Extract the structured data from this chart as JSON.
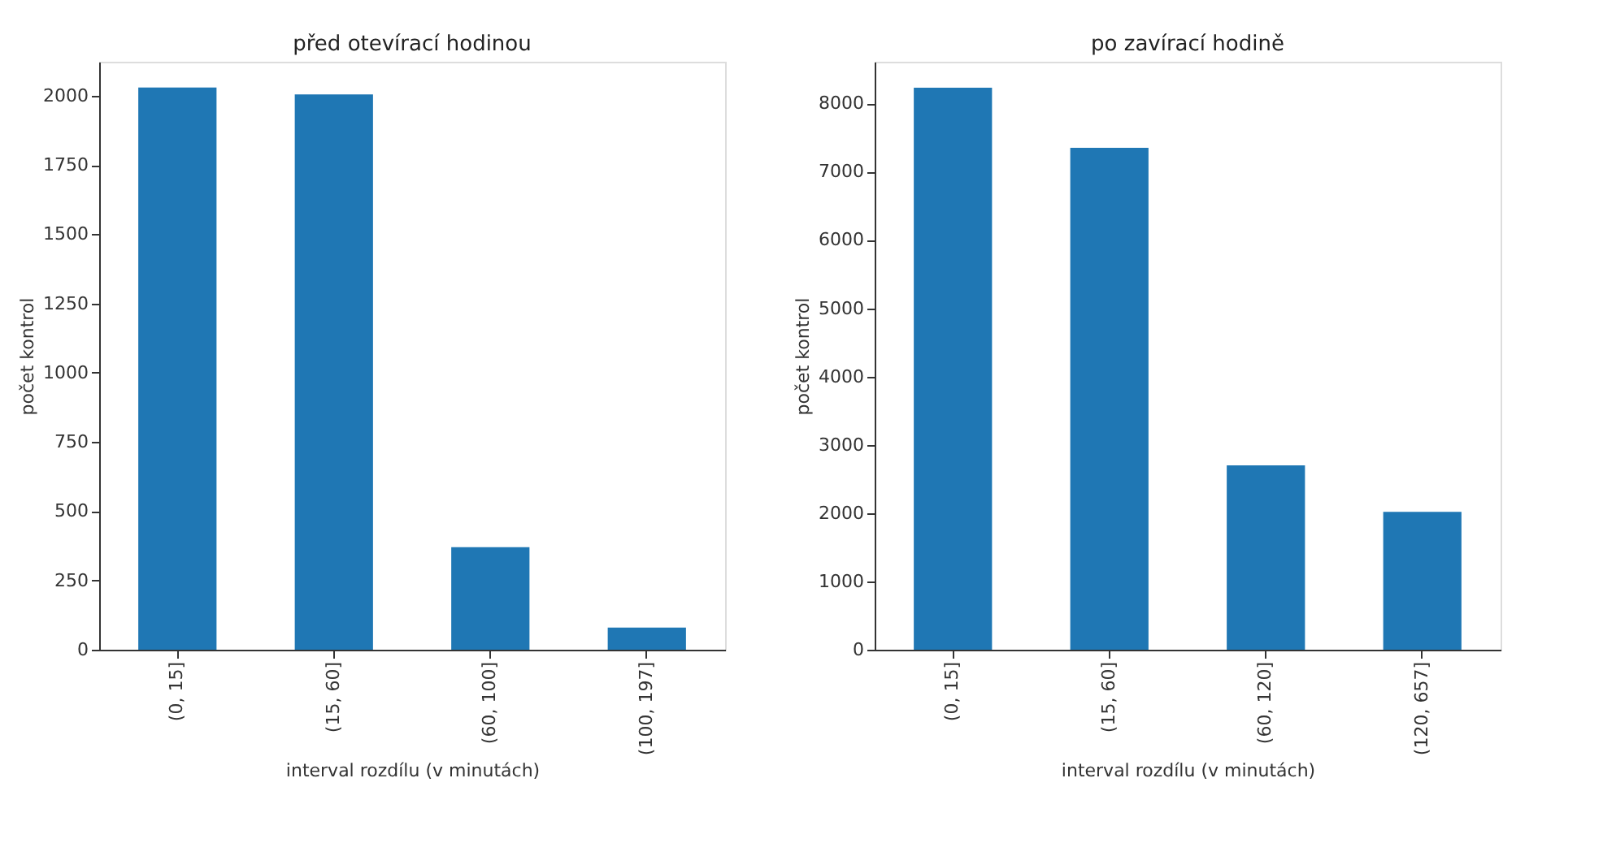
{
  "chart_data": [
    {
      "type": "bar",
      "title": "před otevírací hodinou",
      "xlabel": "interval rozdílu (v minutách)",
      "ylabel": "počet kontrol",
      "categories": [
        "(0, 15]",
        "(15, 60]",
        "(60, 100]",
        "(100, 197]"
      ],
      "values": [
        2030,
        2005,
        370,
        80
      ],
      "color": "#1f77b4",
      "ylim": [
        0,
        2123
      ],
      "yticks": [
        0,
        250,
        500,
        750,
        1000,
        1250,
        1500,
        1750,
        2000
      ],
      "grid": false
    },
    {
      "type": "bar",
      "title": "po zavírací hodině",
      "xlabel": "interval rozdílu (v minutách)",
      "ylabel": "počet kontrol",
      "categories": [
        "(0, 15]",
        "(15, 60]",
        "(60, 120]",
        "(120, 657]"
      ],
      "values": [
        8230,
        7350,
        2700,
        2020
      ],
      "color": "#1f77b4",
      "ylim": [
        0,
        8610
      ],
      "yticks": [
        0,
        1000,
        2000,
        3000,
        4000,
        5000,
        6000,
        7000,
        8000
      ],
      "grid": false
    }
  ]
}
